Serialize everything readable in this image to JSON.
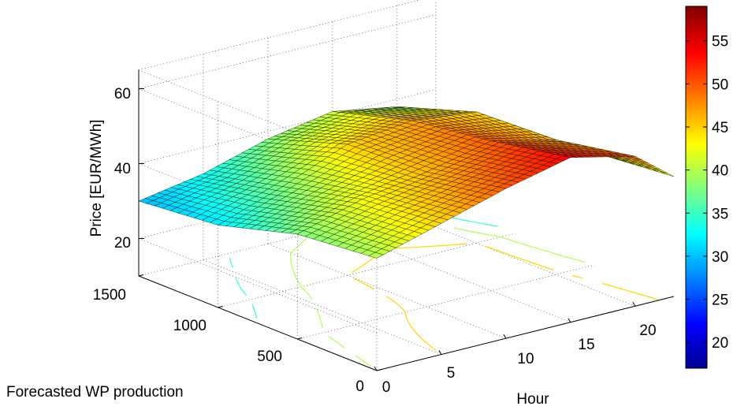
{
  "chart_data": {
    "type": "surface",
    "title": "",
    "xlabel": "Hour",
    "ylabel": "Forecasted WP production",
    "zlabel": "Price [EUR/MWh]",
    "x_ticks": [
      "0",
      "5",
      "10",
      "15",
      "20"
    ],
    "y_ticks": [
      "0",
      "500",
      "1000",
      "1500"
    ],
    "z_ticks": [
      "20",
      "40",
      "60"
    ],
    "xlim": [
      0,
      23
    ],
    "ylim": [
      0,
      1500
    ],
    "zlim": [
      10,
      65
    ],
    "grid": true,
    "colormap": "jet",
    "colorbar": {
      "ticks": [
        "20",
        "25",
        "30",
        "35",
        "40",
        "45",
        "50",
        "55"
      ],
      "range": [
        17,
        59
      ]
    },
    "contours_on_floor": true,
    "contour_levels": [
      20,
      25,
      30,
      35,
      40,
      45,
      50,
      55
    ],
    "surface_x": [
      0,
      5,
      10,
      15,
      20,
      23
    ],
    "surface_y": [
      0,
      500,
      1000,
      1500
    ],
    "surface_z": [
      [
        40,
        45,
        50,
        54,
        50,
        42
      ],
      [
        38,
        43,
        46,
        50,
        46,
        40
      ],
      [
        32,
        38,
        45,
        47,
        45,
        37
      ],
      [
        30,
        33,
        38,
        41,
        38,
        28
      ]
    ]
  }
}
